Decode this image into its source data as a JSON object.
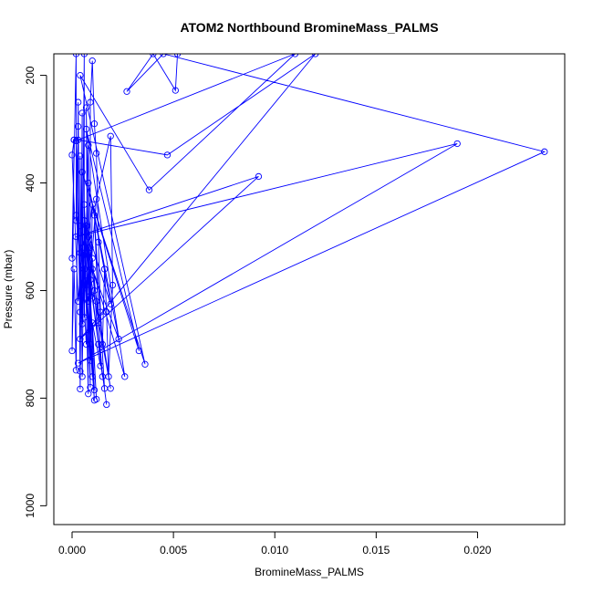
{
  "chart_data": {
    "type": "line",
    "title": "ATOM2 Northbound BromineMass_PALMS",
    "xlabel": "BromineMass_PALMS",
    "ylabel": "Pressure (mbar)",
    "xlim": [
      -0.0009,
      0.0243
    ],
    "ylim": [
      1035,
      160
    ],
    "y_inverted": true,
    "grid": false,
    "x_ticks": [
      {
        "value": 0.0,
        "label": "0.000"
      },
      {
        "value": 0.005,
        "label": "0.005"
      },
      {
        "value": 0.01,
        "label": "0.010"
      },
      {
        "value": 0.015,
        "label": "0.015"
      },
      {
        "value": 0.02,
        "label": "0.020"
      }
    ],
    "y_ticks": [
      {
        "value": 200,
        "label": "200"
      },
      {
        "value": 400,
        "label": "400"
      },
      {
        "value": 600,
        "label": "600"
      },
      {
        "value": 800,
        "label": "800"
      },
      {
        "value": 1000,
        "label": "1000"
      }
    ],
    "series": [
      {
        "color": "#0000ff",
        "marker": "open-circle",
        "points": [
          [
            0.0052,
            160
          ],
          [
            0.0051,
            228
          ],
          [
            0.004,
            160
          ],
          [
            0.0027,
            230
          ],
          [
            0.0045,
            160
          ],
          [
            0.0233,
            342
          ],
          [
            0.0003,
            735
          ],
          [
            0.019,
            327
          ],
          [
            0.0002,
            500
          ],
          [
            0.0092,
            388
          ],
          [
            0.0004,
            690
          ],
          [
            0.012,
            160
          ],
          [
            0.0047,
            348
          ],
          [
            0.0003,
            320
          ],
          [
            0.011,
            160
          ],
          [
            0.0038,
            413
          ],
          [
            0.0004,
            200
          ],
          [
            0.0036,
            737
          ],
          [
            0.0005,
            380
          ],
          [
            0.0033,
            712
          ],
          [
            0.0007,
            300
          ],
          [
            0.0026,
            760
          ],
          [
            0.001,
            560
          ],
          [
            0.0023,
            690
          ],
          [
            0.0008,
            400
          ],
          [
            0.0019,
            625
          ],
          [
            0.0006,
            470
          ],
          [
            0.0019,
            782
          ],
          [
            0.0007,
            530
          ],
          [
            0.0017,
            812
          ],
          [
            0.0009,
            580
          ],
          [
            0.0016,
            782
          ],
          [
            0.0011,
            460
          ],
          [
            0.0014,
            740
          ],
          [
            0.001,
            660
          ],
          [
            0.0012,
            802
          ],
          [
            0.0009,
            610
          ],
          [
            0.0011,
            785
          ],
          [
            0.0008,
            520
          ],
          [
            0.001,
            760
          ],
          [
            0.0007,
            590
          ],
          [
            0.0011,
            804
          ],
          [
            0.0006,
            440
          ],
          [
            0.0009,
            780
          ],
          [
            0.0007,
            260
          ],
          [
            0.0008,
            792
          ],
          [
            0.0006,
            470
          ],
          [
            0.0005,
            760
          ],
          [
            0.0004,
            350
          ],
          [
            0.0004,
            750
          ],
          [
            0.0003,
            250
          ],
          [
            0.0002,
            748
          ],
          [
            0.0001,
            560
          ],
          [
            0.0,
            712
          ],
          [
            0.0001,
            320
          ],
          [
            0.0,
            540
          ],
          [
            0.0002,
            160
          ],
          [
            0.0002,
            470
          ],
          [
            0.0003,
            295
          ],
          [
            0.0004,
            783
          ],
          [
            0.0005,
            270
          ],
          [
            0.0005,
            662
          ],
          [
            0.0006,
            160
          ],
          [
            0.0006,
            650
          ],
          [
            0.0008,
            330
          ],
          [
            0.0009,
            730
          ],
          [
            0.0009,
            250
          ],
          [
            0.001,
            173
          ],
          [
            0.0011,
            290
          ],
          [
            0.0012,
            345
          ],
          [
            0.0013,
            510
          ],
          [
            0.0014,
            640
          ],
          [
            0.0015,
            700
          ],
          [
            0.0016,
            560
          ],
          [
            0.0017,
            640
          ],
          [
            0.0018,
            760
          ],
          [
            0.002,
            590
          ],
          [
            0.0019,
            313
          ],
          [
            0.0012,
            430
          ],
          [
            0.0008,
            620
          ],
          [
            0.0005,
            520
          ],
          [
            0.0003,
            620
          ],
          [
            0.0,
            348
          ],
          [
            0.0001,
            320
          ],
          [
            0.0002,
            322
          ],
          [
            0.0004,
            640
          ],
          [
            0.0006,
            520
          ],
          [
            0.0004,
            480
          ],
          [
            0.0007,
            700
          ],
          [
            0.0008,
            500
          ],
          [
            0.001,
            440
          ],
          [
            0.0009,
            700
          ],
          [
            0.0006,
            560
          ],
          [
            0.0004,
            530
          ],
          [
            0.0002,
            460
          ],
          [
            0.0005,
            600
          ],
          [
            0.0007,
            480
          ],
          [
            0.0009,
            520
          ],
          [
            0.0011,
            600
          ],
          [
            0.0013,
            700
          ],
          [
            0.0015,
            760
          ],
          [
            0.0013,
            660
          ],
          [
            0.0012,
            620
          ],
          [
            0.001,
            540
          ],
          [
            0.0008,
            580
          ]
        ]
      }
    ]
  }
}
